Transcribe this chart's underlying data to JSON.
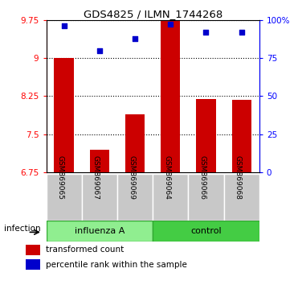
{
  "title": "GDS4825 / ILMN_1744268",
  "samples": [
    "GSM869065",
    "GSM869067",
    "GSM869069",
    "GSM869064",
    "GSM869066",
    "GSM869068"
  ],
  "group_labels": [
    "influenza A",
    "control"
  ],
  "bar_values": [
    9.0,
    7.2,
    7.9,
    9.75,
    8.2,
    8.18
  ],
  "dot_values": [
    96,
    80,
    88,
    97,
    92,
    92
  ],
  "bar_color": "#CC0000",
  "dot_color": "#0000CC",
  "ymin": 6.75,
  "ymax": 9.75,
  "y2min": 0,
  "y2max": 100,
  "yticks": [
    6.75,
    7.5,
    8.25,
    9.0,
    9.75
  ],
  "ytick_labels": [
    "6.75",
    "7.5",
    "8.25",
    "9",
    "9.75"
  ],
  "y2ticks": [
    0,
    25,
    50,
    75,
    100
  ],
  "y2ticklabels": [
    "0",
    "25",
    "50",
    "75",
    "100%"
  ],
  "grid_values": [
    7.5,
    8.25,
    9.0
  ],
  "legend_items": [
    "transformed count",
    "percentile rank within the sample"
  ],
  "xlabel_infection": "infection",
  "influenza_color_light": "#CCFFCC",
  "influenza_color": "#90EE90",
  "control_color": "#44CC44",
  "sample_box_color": "#C8C8C8",
  "fig_width": 3.71,
  "fig_height": 3.54
}
